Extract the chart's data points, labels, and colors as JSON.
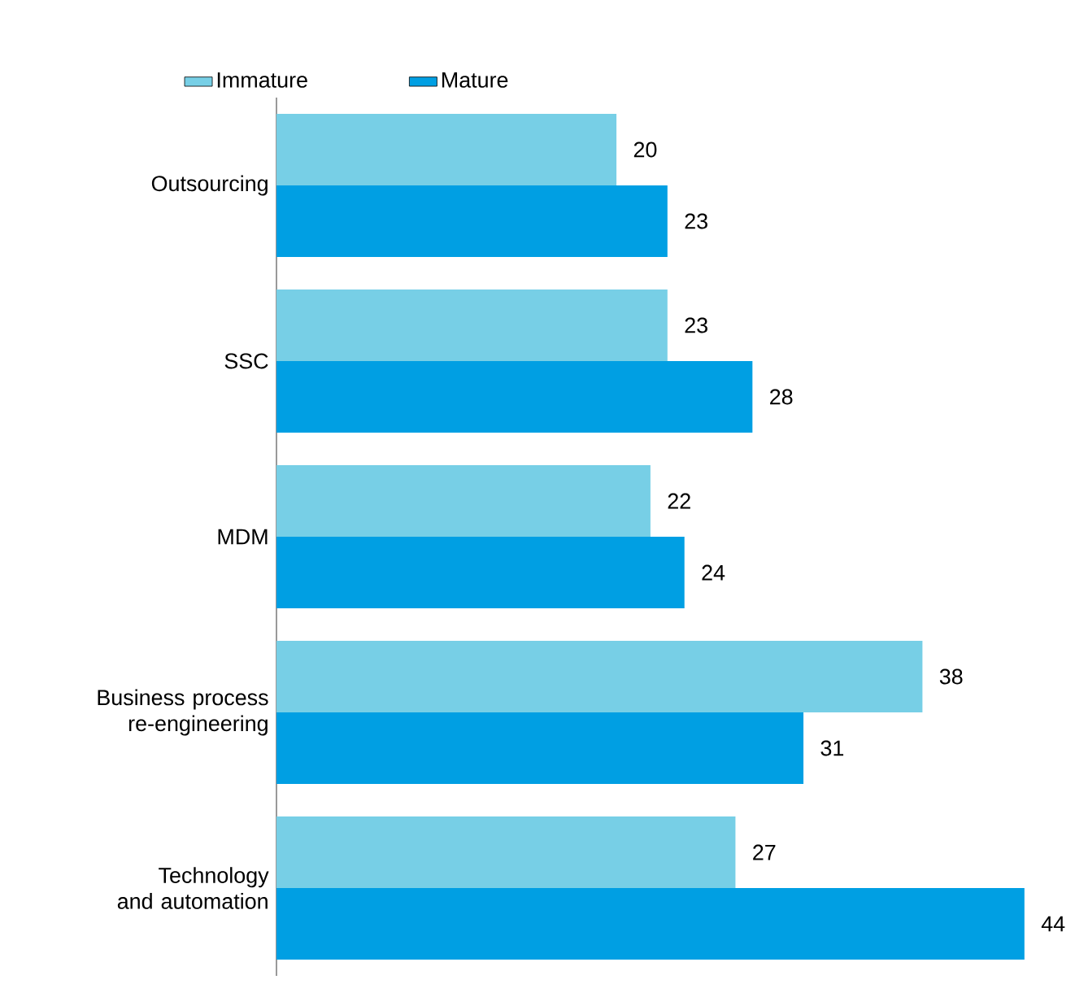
{
  "chart_data": {
    "type": "bar",
    "orientation": "horizontal",
    "categories": [
      "Outsourcing",
      "SSC",
      "MDM",
      "Business process re-engineering",
      "Technology and automation"
    ],
    "series": [
      {
        "name": "Immature",
        "color": "#77cfe6",
        "values": [
          20,
          23,
          22,
          38,
          27
        ]
      },
      {
        "name": "Mature",
        "color": "#009fe3",
        "values": [
          23,
          28,
          24,
          31,
          44
        ]
      }
    ],
    "data_labels": true,
    "legend": "top"
  }
}
